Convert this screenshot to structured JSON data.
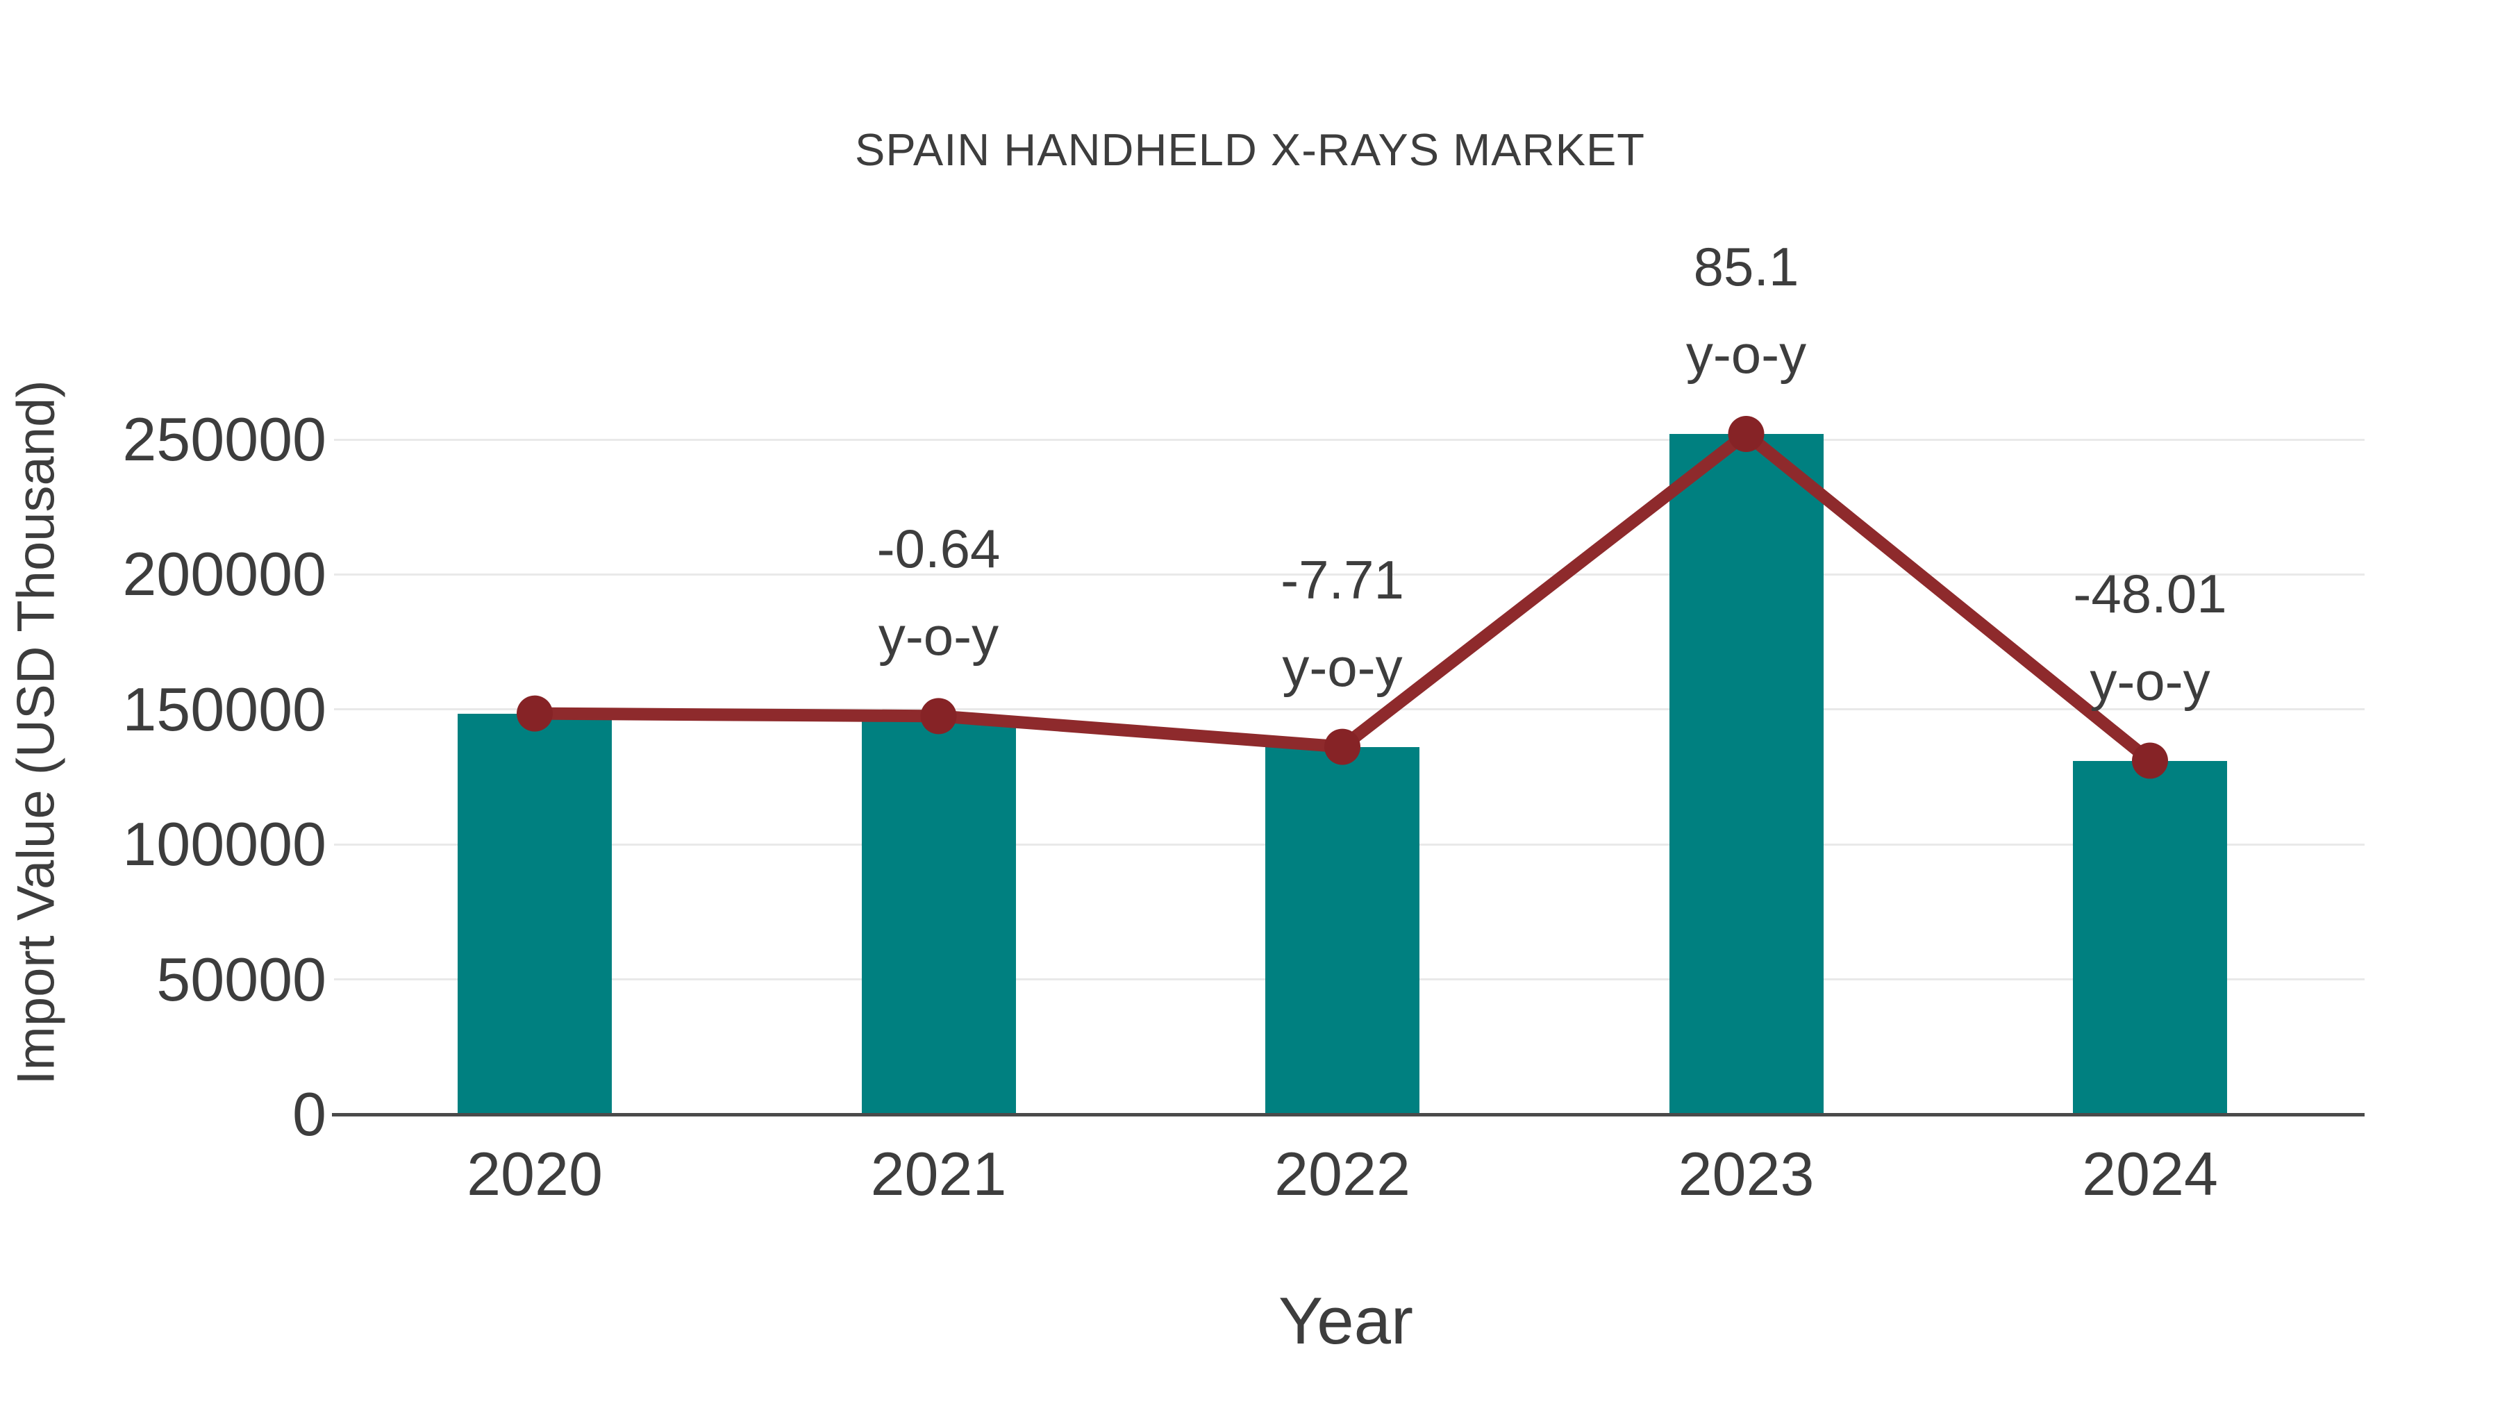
{
  "page": {
    "background": "#FFFFFF"
  },
  "chart_data": {
    "type": "bar",
    "title": "SPAIN HANDHELD X-RAYS MARKET",
    "xlabel": "Year",
    "ylabel": "Import Value (USD Thousand)",
    "categories": [
      "2020",
      "2021",
      "2022",
      "2023",
      "2024"
    ],
    "series": [
      {
        "name": "Import Value (USD Thousand)",
        "type": "bar",
        "color": "#008080",
        "values": [
          148500,
          147550,
          136170,
          252060,
          131030
        ]
      },
      {
        "name": "Import Value trend",
        "type": "line",
        "color": "#8E2A2C",
        "marker_color": "#862326",
        "values": [
          148500,
          147550,
          136170,
          252060,
          131030
        ]
      }
    ],
    "yoy_percent": [
      null,
      -0.64,
      -7.71,
      85.1,
      -48.01
    ],
    "annotations": [
      {
        "category": "2021",
        "value_label": "-0.64",
        "suffix_label": "y-o-y"
      },
      {
        "category": "2022",
        "value_label": "-7.71",
        "suffix_label": "y-o-y"
      },
      {
        "category": "2023",
        "value_label": "85.1",
        "suffix_label": "y-o-y"
      },
      {
        "category": "2024",
        "value_label": "-48.01",
        "suffix_label": "y-o-y"
      }
    ],
    "y_ticks": [
      "0",
      "50000",
      "100000",
      "150000",
      "200000",
      "250000"
    ],
    "y_tick_values": [
      0,
      50000,
      100000,
      150000,
      200000,
      250000
    ],
    "ylim": [
      0,
      260000
    ],
    "grid": true,
    "legend": false,
    "colors": {
      "bar": "#008080",
      "line": "#8E2A2C",
      "marker": "#862326",
      "text": "#3D3D3D",
      "grid_line": "#E9E9E9",
      "axis_line": "#4A4A4A",
      "background": "#FFFFFF"
    }
  }
}
